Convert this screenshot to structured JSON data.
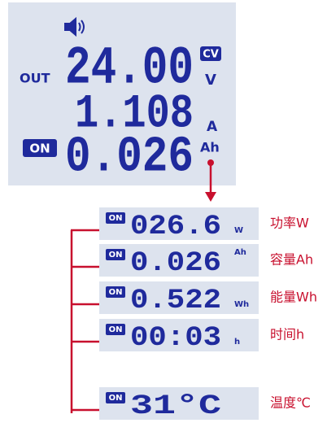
{
  "main_display": {
    "out_label": "OUT",
    "voltage": "24.00",
    "mode": "CV",
    "voltage_unit": "V",
    "current": "1.108",
    "current_unit": "A",
    "status": "ON",
    "capacity": "0.026",
    "capacity_unit": "Ah"
  },
  "modes": [
    {
      "status": "ON",
      "reading": "026.6",
      "unit": "W",
      "label": "功率W"
    },
    {
      "status": "ON",
      "reading": "0.026",
      "unit": "Ah",
      "label": "容量Ah"
    },
    {
      "status": "ON",
      "reading": "0.522",
      "unit": "Wh",
      "label": "能量Wh"
    },
    {
      "status": "ON",
      "reading": "00:03",
      "unit": "h",
      "label": "时间h"
    },
    {
      "status": "ON",
      "reading": "31°C",
      "unit": "",
      "label": "温度℃"
    }
  ]
}
